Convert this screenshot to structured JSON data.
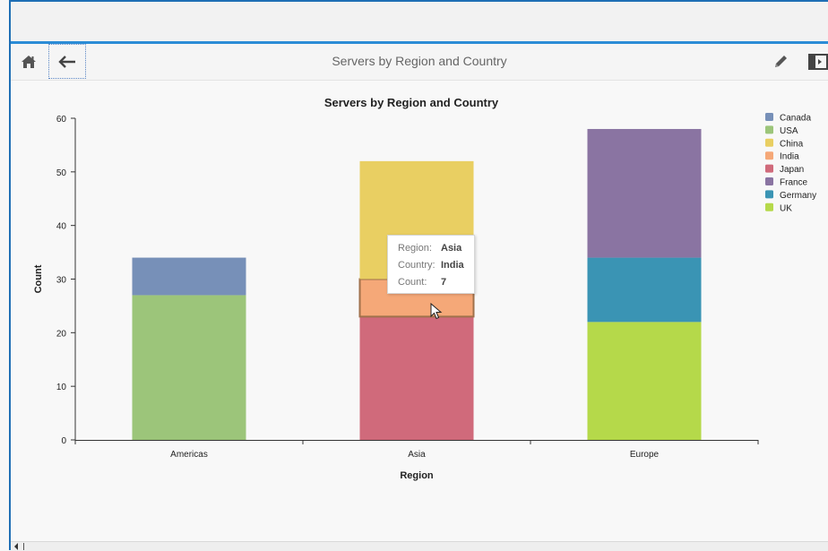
{
  "toolbar": {
    "title": "Servers by Region and Country",
    "icons": {
      "home": "home-icon",
      "back": "back-arrow-icon",
      "edit": "pencil-icon",
      "panel": "panel-toggle-icon"
    }
  },
  "chart_data": {
    "type": "bar",
    "stacked": true,
    "title": "Servers by Region and Country",
    "xlabel": "Region",
    "ylabel": "Count",
    "ylim": [
      0,
      60
    ],
    "yticks": [
      0,
      10,
      20,
      30,
      40,
      50,
      60
    ],
    "categories": [
      "Americas",
      "Asia",
      "Europe"
    ],
    "series": [
      {
        "name": "Canada",
        "color": "#7790b8",
        "values": [
          7,
          0,
          0
        ]
      },
      {
        "name": "USA",
        "color": "#9cc57a",
        "values": [
          27,
          0,
          0
        ]
      },
      {
        "name": "China",
        "color": "#e9cf62",
        "values": [
          0,
          22,
          0
        ]
      },
      {
        "name": "India",
        "color": "#f5a878",
        "values": [
          0,
          7,
          0
        ]
      },
      {
        "name": "Japan",
        "color": "#d06a7b",
        "values": [
          0,
          23,
          0
        ]
      },
      {
        "name": "France",
        "color": "#8a74a2",
        "values": [
          0,
          0,
          24
        ]
      },
      {
        "name": "Germany",
        "color": "#3a94b4",
        "values": [
          0,
          0,
          12
        ]
      },
      {
        "name": "UK",
        "color": "#b5d94a",
        "values": [
          0,
          0,
          22
        ]
      }
    ],
    "stack_order": [
      [
        "USA",
        "Canada"
      ],
      [
        "Japan",
        "India",
        "China"
      ],
      [
        "UK",
        "Germany",
        "France"
      ]
    ],
    "legend": [
      "Canada",
      "USA",
      "China",
      "India",
      "Japan",
      "France",
      "Germany",
      "UK"
    ],
    "legend_position": "top-right",
    "highlighted": {
      "category": "Asia",
      "series": "India"
    }
  },
  "tooltip": {
    "region_label": "Region:",
    "region_value": "Asia",
    "country_label": "Country:",
    "country_value": "India",
    "count_label": "Count:",
    "count_value": "7"
  }
}
